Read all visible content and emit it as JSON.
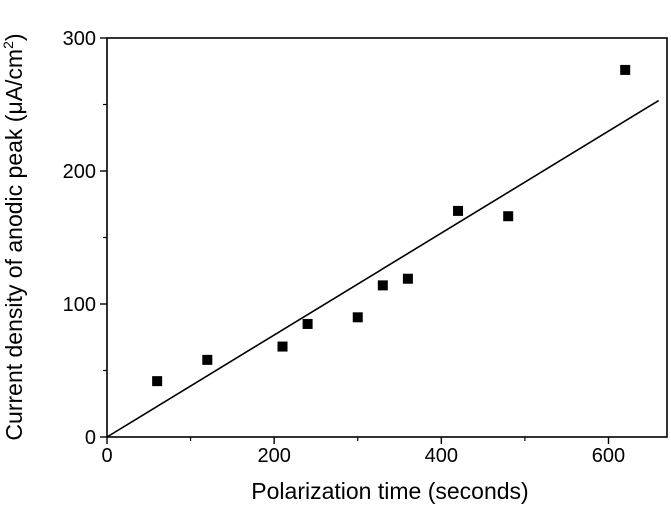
{
  "chart_data": {
    "type": "scatter",
    "title": "",
    "xlabel": "Polarization time  (seconds)",
    "ylabel": "Current density of anodic peak (μA/cm",
    "ylabel_superscript": "2",
    "ylabel_suffix": ")",
    "xlim": [
      0,
      670
    ],
    "ylim": [
      0,
      300
    ],
    "x_ticks": [
      0,
      200,
      400,
      600
    ],
    "y_ticks": [
      0,
      100,
      200,
      300
    ],
    "x_minor_ticks": [
      100,
      300,
      500
    ],
    "y_minor_ticks": [
      50,
      150,
      250
    ],
    "grid": false,
    "series": [
      {
        "marker": "square",
        "color": "#000000",
        "points": [
          {
            "x": 60,
            "y": 42
          },
          {
            "x": 120,
            "y": 58
          },
          {
            "x": 210,
            "y": 68
          },
          {
            "x": 240,
            "y": 85
          },
          {
            "x": 300,
            "y": 90
          },
          {
            "x": 330,
            "y": 114
          },
          {
            "x": 360,
            "y": 119
          },
          {
            "x": 420,
            "y": 170
          },
          {
            "x": 480,
            "y": 166
          },
          {
            "x": 620,
            "y": 276
          }
        ]
      }
    ],
    "fit_line": {
      "x": [
        0,
        660
      ],
      "y": [
        0,
        253
      ],
      "color": "#000000"
    }
  }
}
